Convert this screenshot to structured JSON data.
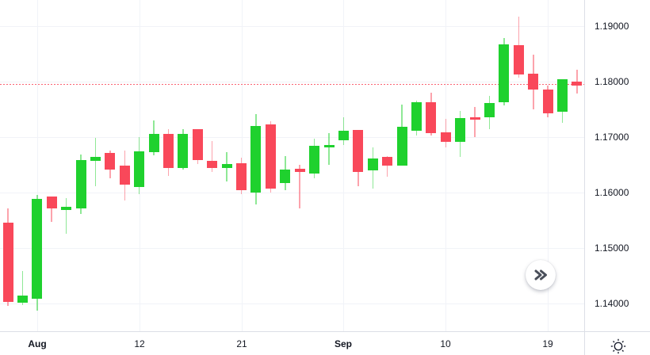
{
  "chart_data": {
    "type": "candlestick",
    "title": "",
    "xlabel": "",
    "ylabel": "",
    "y_axis": {
      "top": 1.19471,
      "bottom": 1.135,
      "ticks": [
        {
          "value": 1.19,
          "label": "1.19000"
        },
        {
          "value": 1.18,
          "label": "1.18000"
        },
        {
          "value": 1.17,
          "label": "1.17000"
        },
        {
          "value": 1.16,
          "label": "1.16000"
        },
        {
          "value": 1.15,
          "label": "1.15000"
        },
        {
          "value": 1.14,
          "label": "1.14000"
        }
      ]
    },
    "x_axis": {
      "labels": [
        {
          "index": 2,
          "label": "Aug",
          "bold": true
        },
        {
          "index": 9,
          "label": "12",
          "bold": false
        },
        {
          "index": 16,
          "label": "21",
          "bold": false
        },
        {
          "index": 23,
          "label": "Sep",
          "bold": true
        },
        {
          "index": 30,
          "label": "10",
          "bold": false
        },
        {
          "index": 37,
          "label": "19",
          "bold": false
        }
      ]
    },
    "price_line": {
      "value": 1.1795,
      "color": "#f9485a",
      "style": "dotted"
    },
    "colors": {
      "up": "#1fd12e",
      "down": "#f9485a",
      "grid": "#f1f3f8",
      "axis_border": "#dcdfe6",
      "axis_text": "#131722"
    },
    "candles": [
      {
        "o": 1.1546,
        "h": 1.1571,
        "l": 1.1396,
        "c": 1.1403
      },
      {
        "o": 1.1401,
        "h": 1.1459,
        "l": 1.1397,
        "c": 1.1414
      },
      {
        "o": 1.1409,
        "h": 1.1596,
        "l": 1.1387,
        "c": 1.1589
      },
      {
        "o": 1.1593,
        "h": 1.1593,
        "l": 1.1547,
        "c": 1.1571
      },
      {
        "o": 1.1568,
        "h": 1.159,
        "l": 1.1526,
        "c": 1.1574
      },
      {
        "o": 1.1571,
        "h": 1.1669,
        "l": 1.1561,
        "c": 1.1659
      },
      {
        "o": 1.1657,
        "h": 1.1699,
        "l": 1.1611,
        "c": 1.1664
      },
      {
        "o": 1.1671,
        "h": 1.1676,
        "l": 1.1626,
        "c": 1.1641
      },
      {
        "o": 1.1649,
        "h": 1.1676,
        "l": 1.1586,
        "c": 1.1614
      },
      {
        "o": 1.161,
        "h": 1.17,
        "l": 1.1597,
        "c": 1.1674
      },
      {
        "o": 1.1673,
        "h": 1.173,
        "l": 1.1667,
        "c": 1.1706
      },
      {
        "o": 1.1706,
        "h": 1.1714,
        "l": 1.163,
        "c": 1.1644
      },
      {
        "o": 1.1644,
        "h": 1.1714,
        "l": 1.1641,
        "c": 1.1706
      },
      {
        "o": 1.1714,
        "h": 1.1714,
        "l": 1.1651,
        "c": 1.1659
      },
      {
        "o": 1.1657,
        "h": 1.1693,
        "l": 1.1637,
        "c": 1.1644
      },
      {
        "o": 1.1644,
        "h": 1.1673,
        "l": 1.162,
        "c": 1.1651
      },
      {
        "o": 1.1653,
        "h": 1.1663,
        "l": 1.1597,
        "c": 1.1604
      },
      {
        "o": 1.16,
        "h": 1.1741,
        "l": 1.1579,
        "c": 1.172
      },
      {
        "o": 1.1723,
        "h": 1.1729,
        "l": 1.16,
        "c": 1.1607
      },
      {
        "o": 1.1617,
        "h": 1.1666,
        "l": 1.1604,
        "c": 1.1641
      },
      {
        "o": 1.1643,
        "h": 1.165,
        "l": 1.1571,
        "c": 1.1637
      },
      {
        "o": 1.1634,
        "h": 1.1697,
        "l": 1.1626,
        "c": 1.1684
      },
      {
        "o": 1.1681,
        "h": 1.1707,
        "l": 1.165,
        "c": 1.1686
      },
      {
        "o": 1.1694,
        "h": 1.1736,
        "l": 1.1686,
        "c": 1.1711
      },
      {
        "o": 1.1713,
        "h": 1.1713,
        "l": 1.1611,
        "c": 1.1637
      },
      {
        "o": 1.164,
        "h": 1.1681,
        "l": 1.1607,
        "c": 1.1661
      },
      {
        "o": 1.1664,
        "h": 1.1666,
        "l": 1.1629,
        "c": 1.1649
      },
      {
        "o": 1.1649,
        "h": 1.1759,
        "l": 1.1649,
        "c": 1.1719
      },
      {
        "o": 1.1711,
        "h": 1.1766,
        "l": 1.1703,
        "c": 1.1763
      },
      {
        "o": 1.1763,
        "h": 1.178,
        "l": 1.1703,
        "c": 1.1707
      },
      {
        "o": 1.1709,
        "h": 1.1733,
        "l": 1.1681,
        "c": 1.1691
      },
      {
        "o": 1.1691,
        "h": 1.1747,
        "l": 1.1664,
        "c": 1.1734
      },
      {
        "o": 1.1736,
        "h": 1.1754,
        "l": 1.17,
        "c": 1.1731
      },
      {
        "o": 1.1736,
        "h": 1.1774,
        "l": 1.1714,
        "c": 1.1761
      },
      {
        "o": 1.1763,
        "h": 1.1879,
        "l": 1.1757,
        "c": 1.1867
      },
      {
        "o": 1.1866,
        "h": 1.1917,
        "l": 1.1807,
        "c": 1.1813
      },
      {
        "o": 1.1814,
        "h": 1.1849,
        "l": 1.175,
        "c": 1.1786
      },
      {
        "o": 1.1786,
        "h": 1.1793,
        "l": 1.1736,
        "c": 1.1743
      },
      {
        "o": 1.1746,
        "h": 1.1804,
        "l": 1.1726,
        "c": 1.1804
      },
      {
        "o": 1.18,
        "h": 1.1821,
        "l": 1.1779,
        "c": 1.1793
      }
    ]
  },
  "controls": {
    "scroll_to_latest_icon": "double-chevron-right-icon",
    "corner_icon": "sun-icon"
  }
}
